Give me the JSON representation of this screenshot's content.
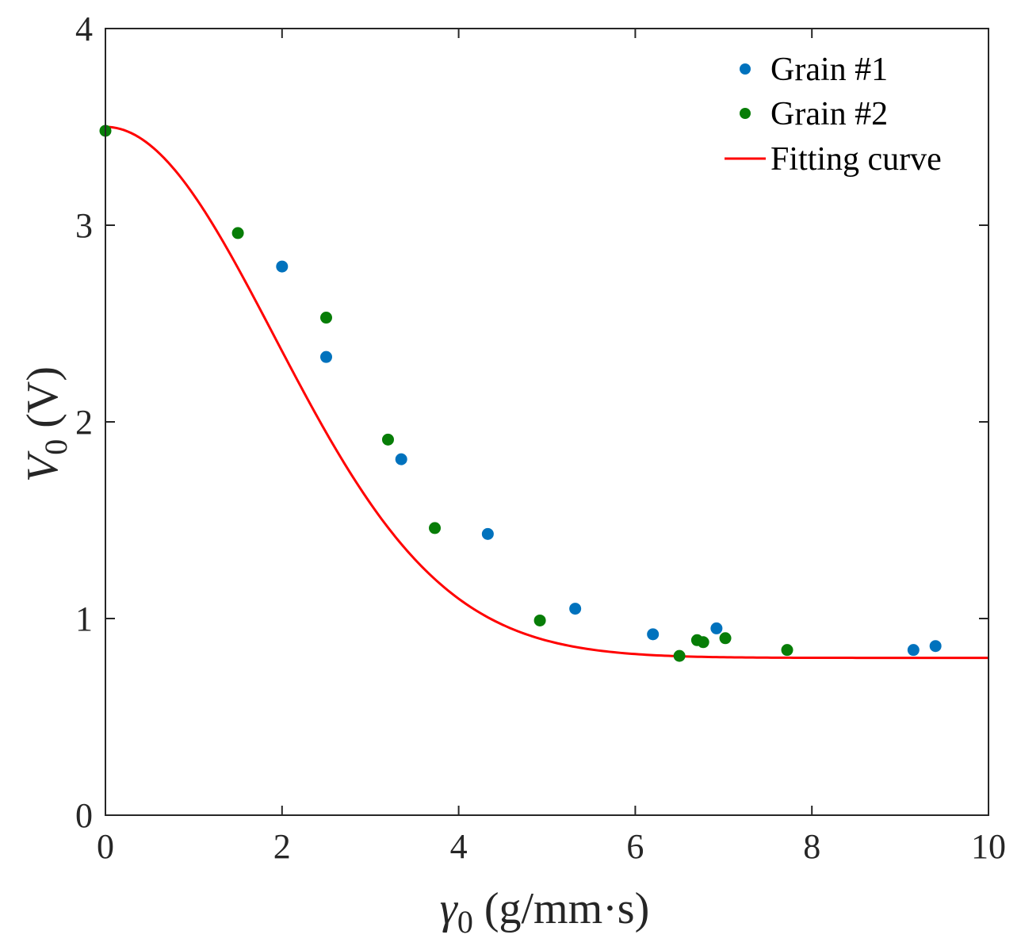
{
  "chart_data": {
    "type": "scatter",
    "x": {
      "label_symbol": "γ",
      "label_sub": "0",
      "label_unit": " (g/mm·s)",
      "lim": [
        0,
        10
      ],
      "ticks": [
        0,
        2,
        4,
        6,
        8,
        10
      ]
    },
    "y": {
      "label_symbol": "V",
      "label_sub": "0",
      "label_unit": " (V)",
      "lim": [
        0,
        4
      ],
      "ticks": [
        0,
        1,
        2,
        3,
        4
      ]
    },
    "legend_position": "top-right",
    "grid": false,
    "series": [
      {
        "name": "Grain #1",
        "kind": "scatter",
        "color": "#0072BD",
        "points": [
          [
            2.0,
            2.79
          ],
          [
            2.5,
            2.33
          ],
          [
            3.35,
            1.81
          ],
          [
            4.33,
            1.43
          ],
          [
            5.32,
            1.05
          ],
          [
            6.2,
            0.92
          ],
          [
            6.92,
            0.95
          ],
          [
            9.15,
            0.84
          ],
          [
            9.4,
            0.86
          ]
        ]
      },
      {
        "name": "Grain #2",
        "kind": "scatter",
        "color": "#077D07",
        "points": [
          [
            0.0,
            3.48
          ],
          [
            1.5,
            2.96
          ],
          [
            2.5,
            2.53
          ],
          [
            3.2,
            1.91
          ],
          [
            3.73,
            1.46
          ],
          [
            4.92,
            0.99
          ],
          [
            6.5,
            0.81
          ],
          [
            6.7,
            0.89
          ],
          [
            6.77,
            0.88
          ],
          [
            7.02,
            0.9
          ],
          [
            7.72,
            0.84
          ]
        ]
      },
      {
        "name": "Fitting curve",
        "kind": "line",
        "color": "#FF0000",
        "model": {
          "base": 0.8,
          "amplitude": 2.7,
          "width": 2.7
        }
      }
    ]
  }
}
